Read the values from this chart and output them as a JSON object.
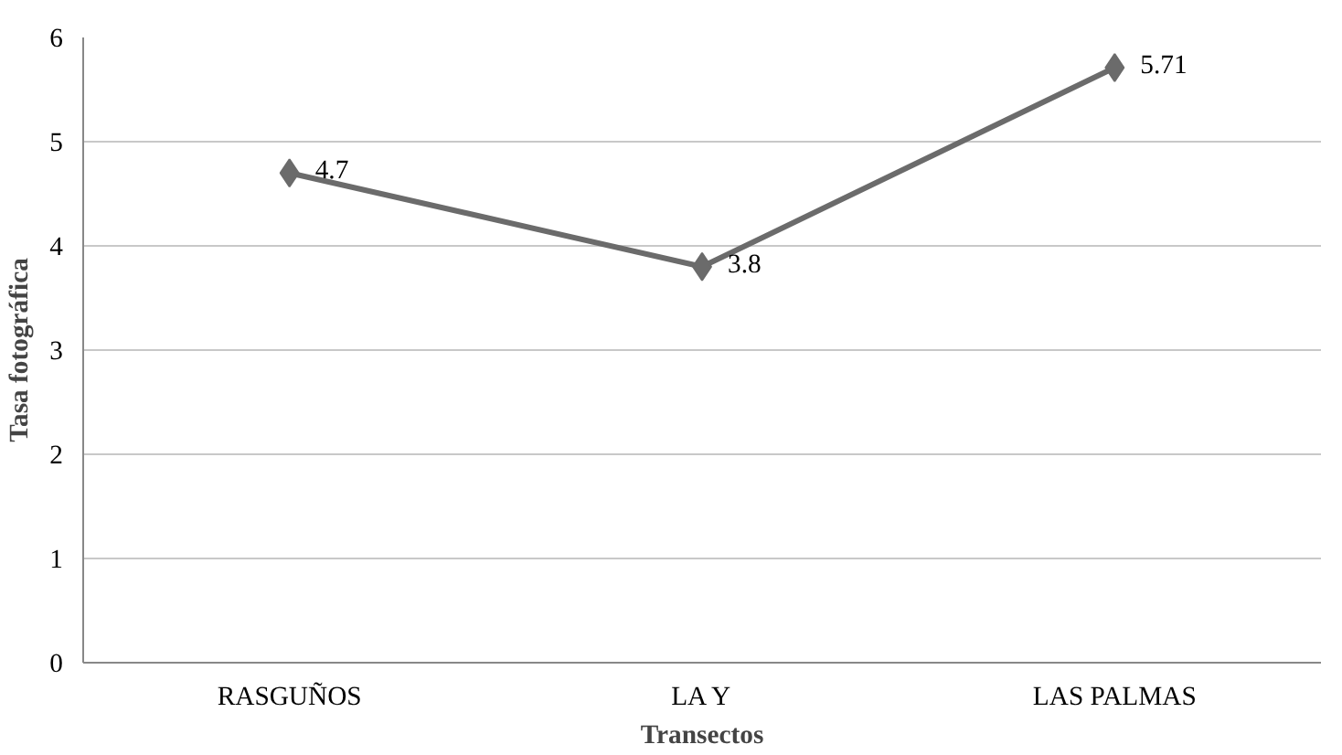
{
  "chart_data": {
    "type": "line",
    "xlabel": "Transectos",
    "ylabel": "Tasa fotográfica",
    "categories": [
      "RASGUÑOS",
      "LA Y",
      "LAS PALMAS"
    ],
    "series": [
      {
        "color": "#6b6b6b",
        "values": [
          4.7,
          3.8,
          5.71
        ]
      }
    ],
    "value_labels": [
      "4.7",
      "3.8",
      "5.71"
    ],
    "ylim": [
      0,
      6
    ],
    "yticks": [
      0,
      1,
      2,
      3,
      4,
      5,
      6
    ],
    "grid": "y",
    "marker": "diamond",
    "line_style": "solid"
  }
}
